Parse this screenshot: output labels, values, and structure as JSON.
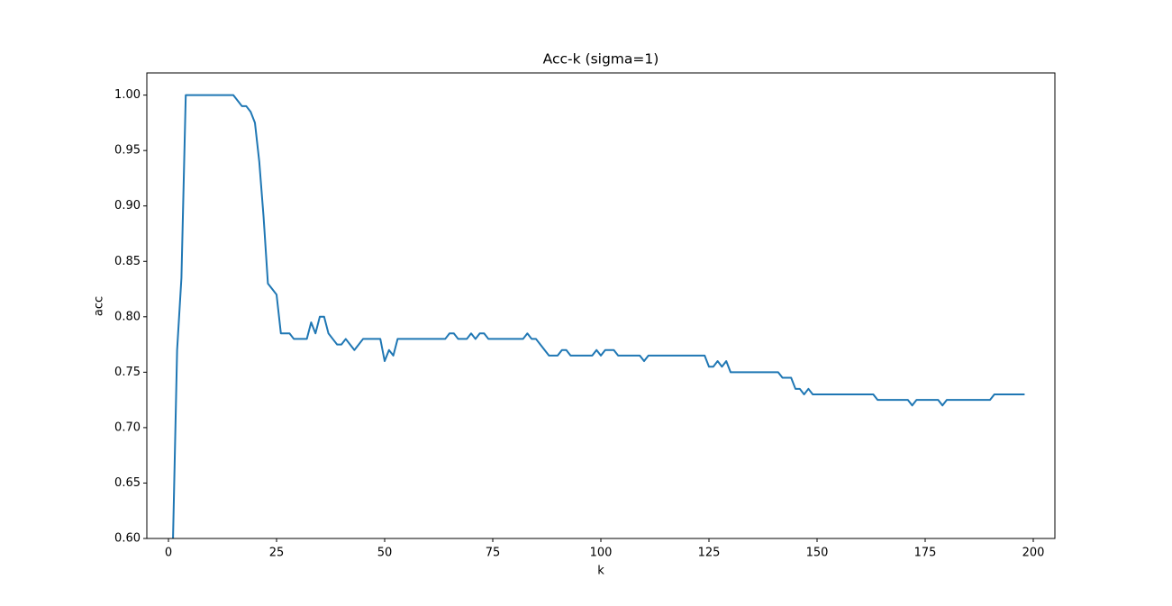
{
  "chart_data": {
    "type": "line",
    "title": "Acc-k (sigma=1)",
    "xlabel": "k",
    "ylabel": "acc",
    "x": [
      1,
      2,
      3,
      4,
      5,
      6,
      7,
      8,
      9,
      10,
      11,
      12,
      13,
      14,
      15,
      16,
      17,
      18,
      19,
      20,
      21,
      22,
      23,
      24,
      25,
      26,
      27,
      28,
      29,
      30,
      31,
      32,
      33,
      34,
      35,
      36,
      37,
      38,
      39,
      40,
      41,
      42,
      43,
      44,
      45,
      46,
      47,
      48,
      49,
      50,
      51,
      52,
      53,
      54,
      55,
      56,
      57,
      58,
      59,
      60,
      61,
      62,
      63,
      64,
      65,
      66,
      67,
      68,
      69,
      70,
      71,
      72,
      73,
      74,
      75,
      76,
      77,
      78,
      79,
      80,
      81,
      82,
      83,
      84,
      85,
      86,
      87,
      88,
      89,
      90,
      91,
      92,
      93,
      94,
      95,
      96,
      97,
      98,
      99,
      100,
      101,
      102,
      103,
      104,
      105,
      106,
      107,
      108,
      109,
      110,
      111,
      112,
      113,
      114,
      115,
      116,
      117,
      118,
      119,
      120,
      121,
      122,
      123,
      124,
      125,
      126,
      127,
      128,
      129,
      130,
      131,
      132,
      133,
      134,
      135,
      136,
      137,
      138,
      139,
      140,
      141,
      142,
      143,
      144,
      145,
      146,
      147,
      148,
      149,
      150,
      151,
      152,
      153,
      154,
      155,
      156,
      157,
      158,
      159,
      160,
      161,
      162,
      163,
      164,
      165,
      166,
      167,
      168,
      169,
      170,
      171,
      172,
      173,
      174,
      175,
      176,
      177,
      178,
      179,
      180,
      181,
      182,
      183,
      184,
      185,
      186,
      187,
      188,
      189,
      190,
      191,
      192,
      193,
      194,
      195,
      196,
      197,
      198
    ],
    "series": [
      {
        "name": "acc",
        "color": "#1f77b4",
        "values": [
          0.59,
          0.77,
          0.835,
          1.0,
          1.0,
          1.0,
          1.0,
          1.0,
          1.0,
          1.0,
          1.0,
          1.0,
          1.0,
          1.0,
          1.0,
          0.995,
          0.99,
          0.99,
          0.985,
          0.975,
          0.94,
          0.89,
          0.83,
          0.825,
          0.82,
          0.785,
          0.785,
          0.785,
          0.78,
          0.78,
          0.78,
          0.78,
          0.795,
          0.785,
          0.8,
          0.8,
          0.785,
          0.78,
          0.775,
          0.775,
          0.78,
          0.775,
          0.77,
          0.775,
          0.78,
          0.78,
          0.78,
          0.78,
          0.78,
          0.76,
          0.77,
          0.765,
          0.78,
          0.78,
          0.78,
          0.78,
          0.78,
          0.78,
          0.78,
          0.78,
          0.78,
          0.78,
          0.78,
          0.78,
          0.785,
          0.785,
          0.78,
          0.78,
          0.78,
          0.785,
          0.78,
          0.785,
          0.785,
          0.78,
          0.78,
          0.78,
          0.78,
          0.78,
          0.78,
          0.78,
          0.78,
          0.78,
          0.785,
          0.78,
          0.78,
          0.775,
          0.77,
          0.765,
          0.765,
          0.765,
          0.77,
          0.77,
          0.765,
          0.765,
          0.765,
          0.765,
          0.765,
          0.765,
          0.77,
          0.765,
          0.77,
          0.77,
          0.77,
          0.765,
          0.765,
          0.765,
          0.765,
          0.765,
          0.765,
          0.76,
          0.765,
          0.765,
          0.765,
          0.765,
          0.765,
          0.765,
          0.765,
          0.765,
          0.765,
          0.765,
          0.765,
          0.765,
          0.765,
          0.765,
          0.755,
          0.755,
          0.76,
          0.755,
          0.76,
          0.75,
          0.75,
          0.75,
          0.75,
          0.75,
          0.75,
          0.75,
          0.75,
          0.75,
          0.75,
          0.75,
          0.75,
          0.745,
          0.745,
          0.745,
          0.735,
          0.735,
          0.73,
          0.735,
          0.73,
          0.73,
          0.73,
          0.73,
          0.73,
          0.73,
          0.73,
          0.73,
          0.73,
          0.73,
          0.73,
          0.73,
          0.73,
          0.73,
          0.73,
          0.725,
          0.725,
          0.725,
          0.725,
          0.725,
          0.725,
          0.725,
          0.725,
          0.72,
          0.725,
          0.725,
          0.725,
          0.725,
          0.725,
          0.725,
          0.72,
          0.725,
          0.725,
          0.725,
          0.725,
          0.725,
          0.725,
          0.725,
          0.725,
          0.725,
          0.725,
          0.725,
          0.73,
          0.73,
          0.73,
          0.73,
          0.73,
          0.73,
          0.73,
          0.73
        ]
      }
    ],
    "xlim": [
      -5,
      205
    ],
    "ylim": [
      0.6,
      1.02
    ],
    "xticks": [
      0,
      25,
      50,
      75,
      100,
      125,
      150,
      175,
      200
    ],
    "yticks": [
      {
        "value": 0.6,
        "label": "0.60"
      },
      {
        "value": 0.65,
        "label": "0.65"
      },
      {
        "value": 0.7,
        "label": "0.70"
      },
      {
        "value": 0.75,
        "label": "0.75"
      },
      {
        "value": 0.8,
        "label": "0.80"
      },
      {
        "value": 0.85,
        "label": "0.85"
      },
      {
        "value": 0.9,
        "label": "0.90"
      },
      {
        "value": 0.95,
        "label": "0.95"
      },
      {
        "value": 1.0,
        "label": "1.00"
      }
    ]
  }
}
